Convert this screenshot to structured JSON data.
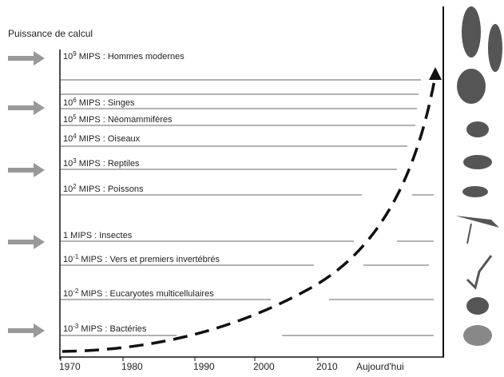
{
  "title": "Puissance de calcul",
  "levels": [
    {
      "base": "10",
      "exp": "9",
      "text": " MIPS : Hommes modernes"
    },
    {
      "base": "10",
      "exp": "6",
      "text": " MIPS : Singes"
    },
    {
      "base": "10",
      "exp": "5",
      "text": " MIPS : Néomammifères"
    },
    {
      "base": "10",
      "exp": "4",
      "text": " MIPS : Oiseaux"
    },
    {
      "base": "10",
      "exp": "3",
      "text": " MIPS : Reptiles"
    },
    {
      "base": "10",
      "exp": "2",
      "text": " MIPS : Poissons"
    },
    {
      "base": "1",
      "exp": "",
      "text": " MIPS : Insectes"
    },
    {
      "base": "10",
      "exp": "-1",
      "text": " MIPS : Vers et premiers invertébrés"
    },
    {
      "base": "10",
      "exp": "-2",
      "text": " MIPS : Eucaryotes multicellulaires"
    },
    {
      "base": "10",
      "exp": "-3",
      "text": " MIPS : Bactéries"
    }
  ],
  "x_labels": [
    "1970",
    "1980",
    "1990",
    "2000",
    "2010",
    "Aujourd'hui"
  ]
}
